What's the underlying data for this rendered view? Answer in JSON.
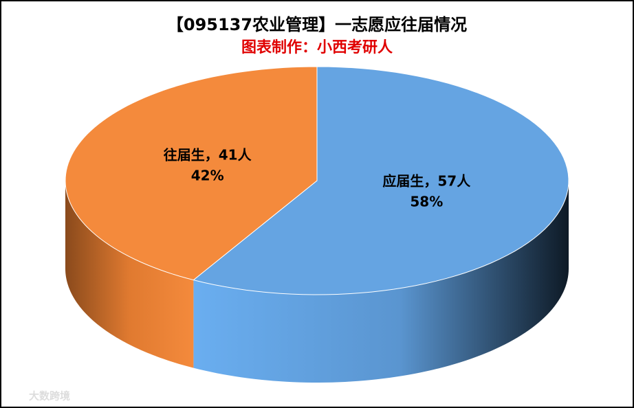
{
  "chart_data": {
    "type": "pie3d",
    "title": "【095137农业管理】一志愿应往届情况",
    "subtitle": "图表制作：小西考研人",
    "categories": [
      "应届生",
      "往届生"
    ],
    "values": [
      57,
      41
    ],
    "value_labels": [
      "应届生，57人",
      "往届生，41人"
    ],
    "percentages": [
      58,
      42
    ],
    "percentage_labels": [
      "58%",
      "42%"
    ],
    "colors": [
      "#65a4e2",
      "#f48a3c"
    ],
    "watermark": "大数跨境"
  }
}
